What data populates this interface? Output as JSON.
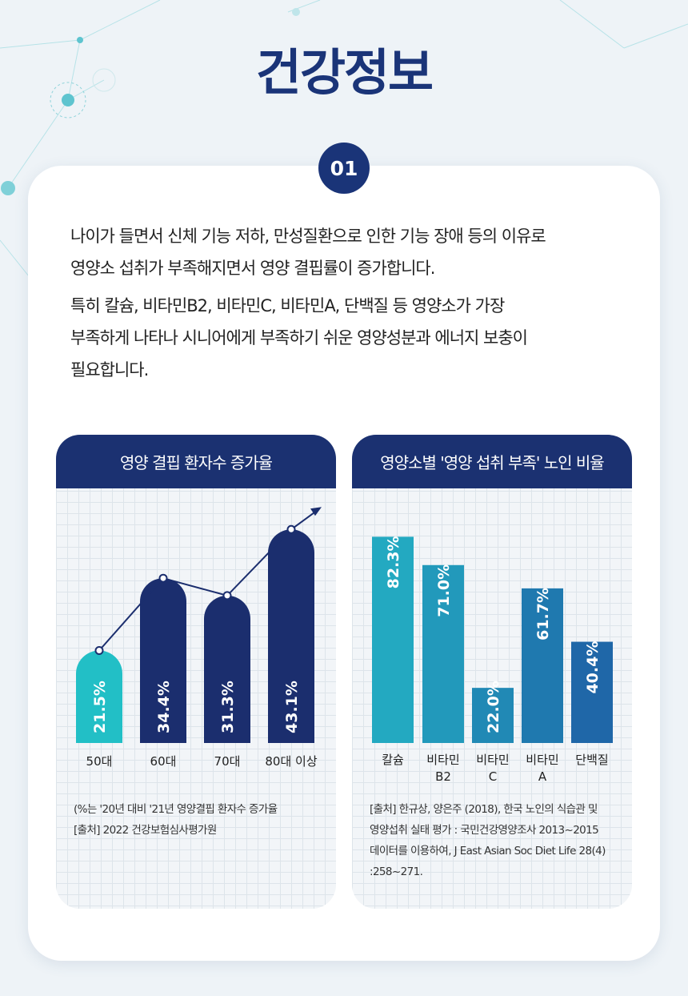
{
  "title": "건강정보",
  "badge": "01",
  "paragraphs": [
    [
      "나이가 들면서 신체 기능 저하, 만성질환으로 인한 기능 장애 등의 이유로",
      "영양소 섭취가 부족해지면서 영양 결핍률이 증가합니다."
    ],
    [
      "특히 칼슘, 비타민B2, 비타민C, 비타민A, 단백질 등 영양소가 가장",
      "부족하게 나타나 시니어에게 부족하기 쉬운 영양성분과 에너지 보충이",
      "필요합니다."
    ]
  ],
  "colors": {
    "navy": "#1b2e6e",
    "teal": "#22bfc6"
  },
  "chart_data": [
    {
      "type": "bar",
      "title": "영양 결핍 환자수 증가율",
      "categories": [
        "50대",
        "60대",
        "70대",
        "80대 이상"
      ],
      "values": [
        21.5,
        34.4,
        31.3,
        43.1
      ],
      "labels": [
        "21.5%",
        "34.4%",
        "31.3%",
        "43.1%"
      ],
      "unit": "%",
      "trend_line": true,
      "notes": [
        "(%는 '20년 대비 '21년 영양결핍 환자수 증가율",
        "[출처] 2022 건강보험심사평가원"
      ]
    },
    {
      "type": "bar",
      "title": "영양소별 '영양 섭취 부족' 노인 비율",
      "categories": [
        "칼슘",
        "비타민 B2",
        "비타민 C",
        "비타민 A",
        "단백질"
      ],
      "category_lines": [
        [
          "칼슘"
        ],
        [
          "비타민",
          "B2"
        ],
        [
          "비타민",
          "C"
        ],
        [
          "비타민",
          "A"
        ],
        [
          "단백질"
        ]
      ],
      "values": [
        82.3,
        71.0,
        22.0,
        61.7,
        40.4
      ],
      "labels": [
        "82.3%",
        "71.0%",
        "22.0%",
        "61.7%",
        "40.4%"
      ],
      "unit": "%",
      "bar_colors": [
        "#23a9c1",
        "#2299bb",
        "#2189b5",
        "#1f79af",
        "#1f67a8"
      ],
      "notes": [
        "[출처] 한규상, 양은주 (2018), 한국 노인의 식습관 및",
        "영양섭취 실태 평가 : 국민건강영양조사 2013~2015",
        "데이터를 이용하여, J East Asian Soc Diet Life 28(4)",
        ":258~271."
      ]
    }
  ]
}
